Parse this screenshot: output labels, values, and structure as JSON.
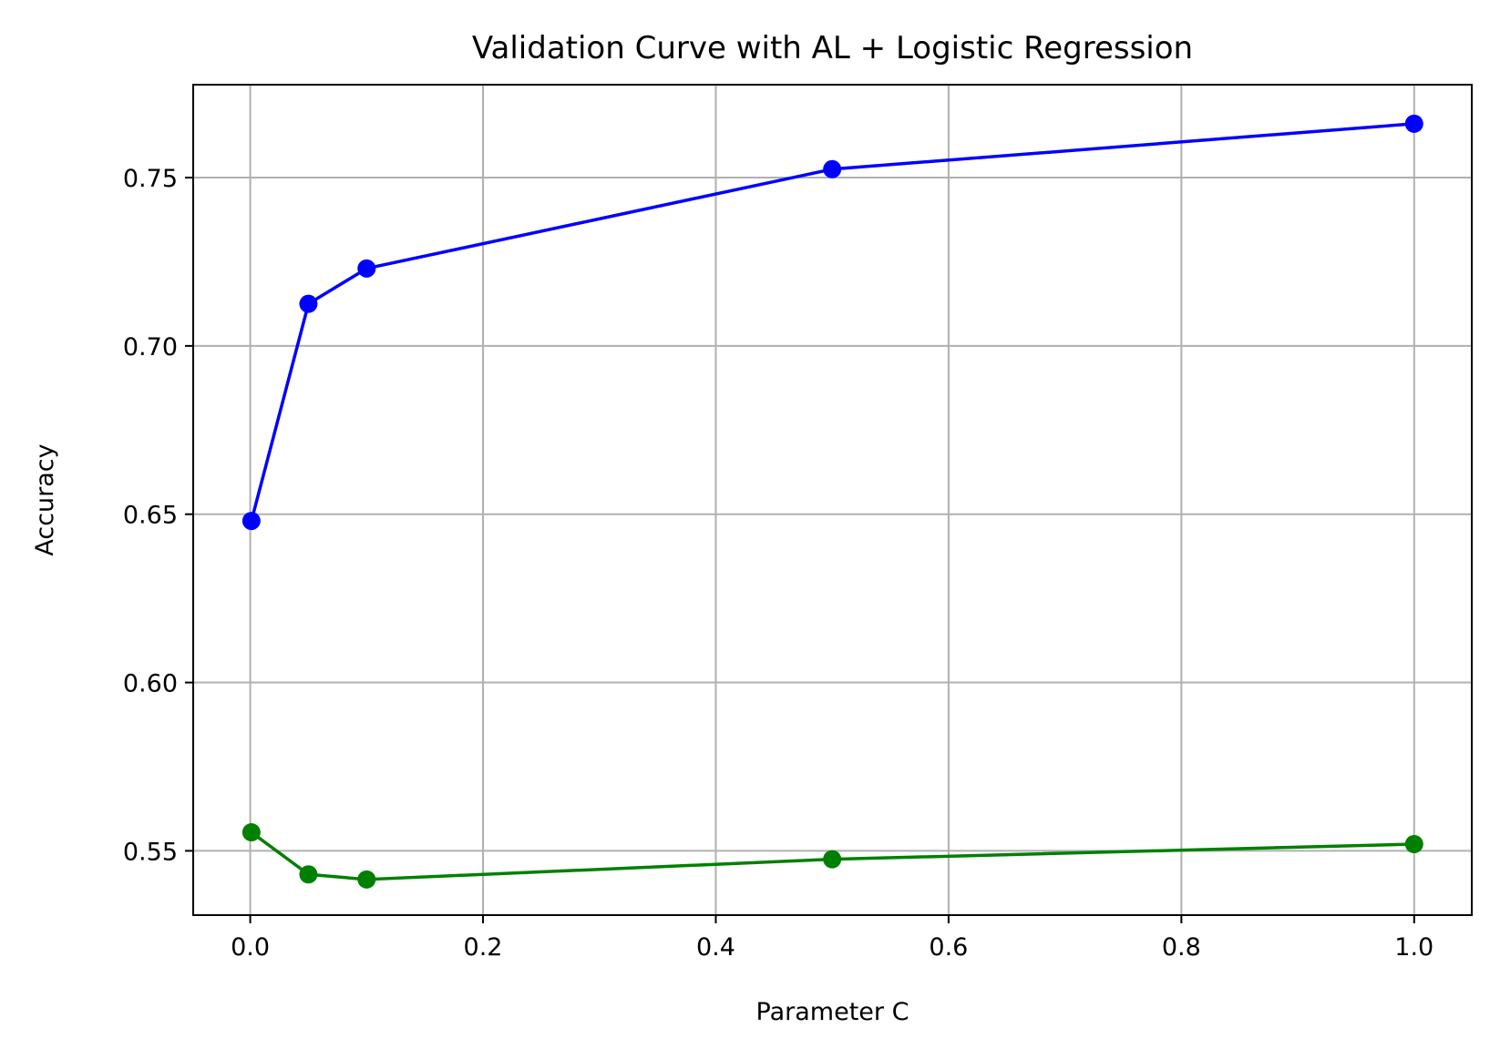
{
  "chart_data": {
    "type": "line",
    "title": "Validation Curve with AL + Logistic Regression",
    "xlabel": "Parameter C",
    "ylabel": "Accuracy",
    "x": [
      0.001,
      0.05,
      0.1,
      0.5,
      1.0
    ],
    "xlim": [
      -0.049,
      1.0495
    ],
    "ylim": [
      0.5309,
      0.7776
    ],
    "xticks": [
      0.0,
      0.2,
      0.4,
      0.6,
      0.8,
      1.0
    ],
    "xtick_labels": [
      "0.0",
      "0.2",
      "0.4",
      "0.6",
      "0.8",
      "1.0"
    ],
    "yticks": [
      0.55,
      0.6,
      0.65,
      0.7,
      0.75
    ],
    "ytick_labels": [
      "0.55",
      "0.60",
      "0.65",
      "0.70",
      "0.75"
    ],
    "grid": true,
    "legend": "none",
    "series": [
      {
        "values": [
          0.648,
          0.7125,
          0.723,
          0.7525,
          0.766
        ],
        "color": "#0000ff",
        "marker": "circle"
      },
      {
        "values": [
          0.5555,
          0.543,
          0.5415,
          0.5475,
          0.552
        ],
        "color": "#008000",
        "marker": "circle"
      }
    ],
    "colors": {
      "grid": "#b0b0b0",
      "axes": "#000000"
    }
  }
}
